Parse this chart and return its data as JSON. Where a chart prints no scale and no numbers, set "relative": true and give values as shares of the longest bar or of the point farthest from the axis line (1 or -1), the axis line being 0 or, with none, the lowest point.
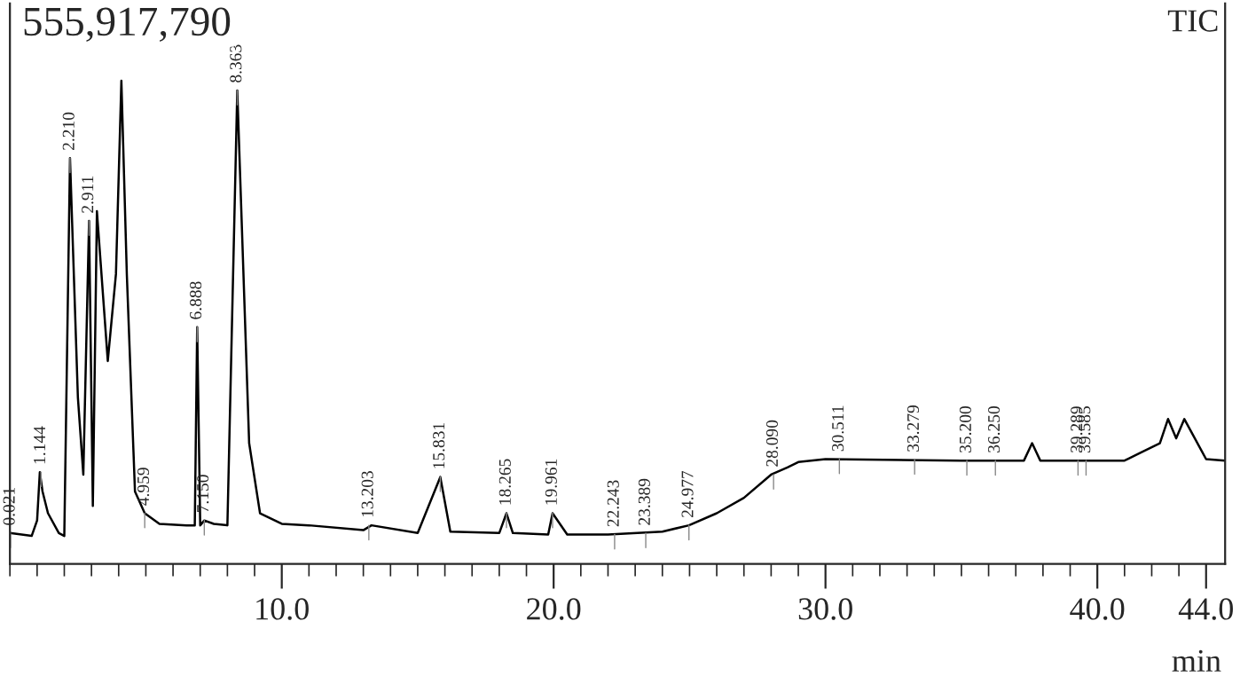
{
  "chart_data": {
    "type": "line",
    "relative": true,
    "xlabel": "min",
    "color": "#000000",
    "grid": false,
    "marker": "none",
    "line_style": "solid",
    "xlim": [
      0,
      44.7
    ],
    "xticks": [
      {
        "value": 10,
        "label": "10.0"
      },
      {
        "value": 20,
        "label": "20.0"
      },
      {
        "value": 30,
        "label": "30.0"
      },
      {
        "value": 40,
        "label": "40.0"
      },
      {
        "value": 44,
        "label": "44.0"
      }
    ],
    "x": [
      0,
      0.8,
      1.0,
      1.1,
      1.2,
      1.4,
      1.8,
      2.0,
      2.21,
      2.5,
      2.7,
      2.911,
      3.05,
      3.2,
      3.6,
      3.9,
      4.1,
      4.3,
      4.6,
      4.959,
      5.5,
      6.5,
      6.8,
      6.888,
      7.0,
      7.15,
      7.5,
      8.0,
      8.363,
      8.8,
      9.2,
      10,
      11,
      13,
      13.3,
      15,
      15.831,
      16.2,
      18.0,
      18.265,
      18.5,
      19.8,
      19.961,
      20.5,
      22,
      24,
      24.977,
      26,
      27,
      28,
      28.6,
      29,
      30,
      35,
      37.3,
      37.6,
      37.9,
      39,
      41,
      42.3,
      42.6,
      42.9,
      43.2,
      44,
      44.7
    ],
    "values": [
      0.064,
      0.058,
      0.09,
      0.19,
      0.15,
      0.105,
      0.064,
      0.058,
      0.84,
      0.345,
      0.185,
      0.71,
      0.12,
      0.73,
      0.42,
      0.6,
      1.0,
      0.6,
      0.15,
      0.105,
      0.083,
      0.08,
      0.08,
      0.49,
      0.08,
      0.09,
      0.083,
      0.08,
      0.98,
      0.25,
      0.105,
      0.083,
      0.08,
      0.07,
      0.08,
      0.064,
      0.18,
      0.067,
      0.064,
      0.105,
      0.064,
      0.061,
      0.105,
      0.061,
      0.061,
      0.067,
      0.08,
      0.105,
      0.137,
      0.185,
      0.2,
      0.211,
      0.217,
      0.214,
      0.214,
      0.25,
      0.214,
      0.214,
      0.214,
      0.25,
      0.3,
      0.26,
      0.3,
      0.217,
      0.214
    ],
    "annotations": [
      "555,917,790",
      "TIC",
      {
        "text": "0.021",
        "x": 0.021,
        "y": 0.064
      },
      {
        "text": "1.144",
        "x": 1.144,
        "y": 0.19
      },
      {
        "text": "2.210",
        "x": 2.21,
        "y": 0.84
      },
      {
        "text": "2.911",
        "x": 2.911,
        "y": 0.71
      },
      {
        "text": "4.959",
        "x": 4.959,
        "y": 0.105
      },
      {
        "text": "6.888",
        "x": 6.888,
        "y": 0.49
      },
      {
        "text": "7.150",
        "x": 7.15,
        "y": 0.09
      },
      {
        "text": "8.363",
        "x": 8.363,
        "y": 0.98
      },
      {
        "text": "13.203",
        "x": 13.203,
        "y": 0.08
      },
      {
        "text": "15.831",
        "x": 15.831,
        "y": 0.18
      },
      {
        "text": "18.265",
        "x": 18.265,
        "y": 0.105
      },
      {
        "text": "19.961",
        "x": 19.961,
        "y": 0.105
      },
      {
        "text": "22.243",
        "x": 22.243,
        "y": 0.061
      },
      {
        "text": "23.389",
        "x": 23.389,
        "y": 0.064
      },
      {
        "text": "24.977",
        "x": 24.977,
        "y": 0.08
      },
      {
        "text": "28.090",
        "x": 28.09,
        "y": 0.185
      },
      {
        "text": "30.511",
        "x": 30.511,
        "y": 0.217
      },
      {
        "text": "33.279",
        "x": 33.279,
        "y": 0.216
      },
      {
        "text": "35.200",
        "x": 35.2,
        "y": 0.214
      },
      {
        "text": "36.250",
        "x": 36.25,
        "y": 0.214
      },
      {
        "text": "39.289",
        "x": 39.289,
        "y": 0.214
      },
      {
        "text": "39.585",
        "x": 39.585,
        "y": 0.214
      }
    ]
  }
}
